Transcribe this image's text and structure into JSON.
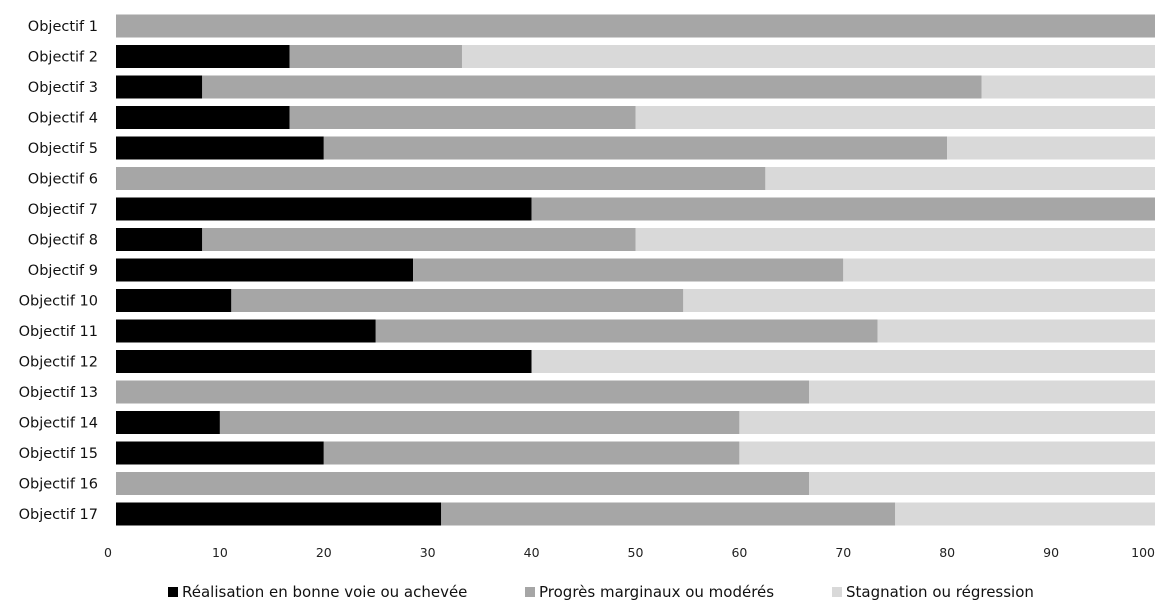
{
  "chart_data": {
    "type": "bar",
    "orientation": "horizontal",
    "stacked": true,
    "title": "",
    "xlabel": "",
    "ylabel": "",
    "xlim": [
      0,
      100
    ],
    "xticks": [
      0,
      10,
      20,
      30,
      40,
      50,
      60,
      70,
      80,
      90,
      100
    ],
    "grid": false,
    "legend_position": "bottom",
    "categories": [
      "Objectif 1",
      "Objectif 2",
      "Objectif 3",
      "Objectif 4",
      "Objectif 5",
      "Objectif 6",
      "Objectif 7",
      "Objectif 8",
      "Objectif 9",
      "Objectif 10",
      "Objectif 11",
      "Objectif 12",
      "Objectif 13",
      "Objectif 14",
      "Objectif 15",
      "Objectif 16",
      "Objectif 17"
    ],
    "series": [
      {
        "name": "Réalisation en bonne voie ou achevée",
        "color": "#000000",
        "values": [
          0,
          16.7,
          8.3,
          16.7,
          20,
          0,
          40,
          8.3,
          28.6,
          11.1,
          25,
          40,
          0,
          10,
          20,
          0,
          31.3
        ]
      },
      {
        "name": "Progrès marginaux ou modérés",
        "color": "#a6a6a6",
        "values": [
          100,
          16.6,
          75,
          33.3,
          60,
          62.5,
          60,
          41.7,
          41.4,
          43.5,
          48.3,
          0,
          66.7,
          50,
          40,
          66.7,
          43.7
        ]
      },
      {
        "name": "Stagnation ou régression",
        "color": "#d9d9d9",
        "values": [
          0,
          66.7,
          16.7,
          50,
          20,
          37.5,
          0,
          50,
          30,
          45.4,
          26.7,
          60,
          33.3,
          40,
          40,
          33.3,
          25
        ]
      }
    ]
  }
}
